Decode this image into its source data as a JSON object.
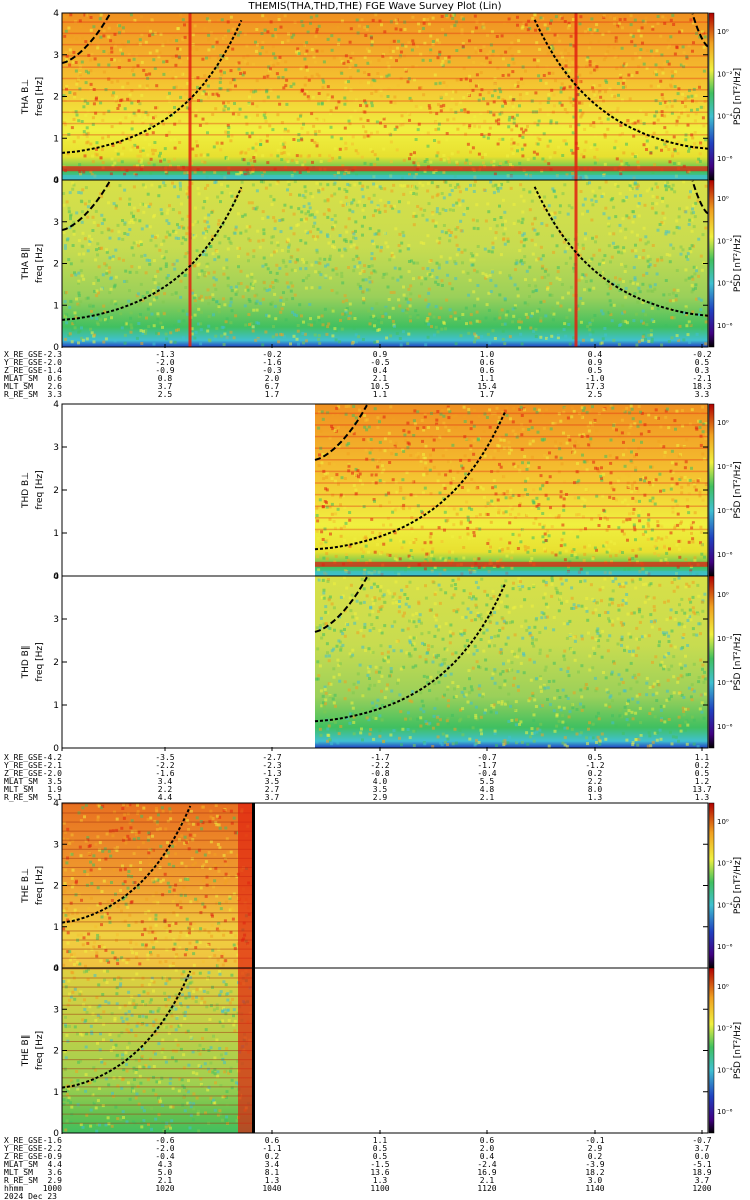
{
  "title": "THEMIS(THA,THD,THE) FGE Wave Survey Plot (Lin)",
  "colors": {
    "red": "#e02010",
    "orange": "#f0a020",
    "yellow": "#f0f040",
    "green": "#40c060",
    "cyan": "#40c0d0",
    "blue": "#2040c0",
    "curve": "#000000"
  },
  "chart_data": [
    {
      "type": "heatmap",
      "probe": "THA",
      "panels": [
        {
          "ylabel": "THA B⊥",
          "ylabel2": "freq [Hz]",
          "ylim": [
            0,
            4
          ],
          "yticks": [
            "0",
            "1",
            "2",
            "3",
            "4"
          ],
          "colorbar_label": "PSD [nT²/Hz]",
          "colorbar_ticks": [
            "10⁰",
            "10⁻²",
            "10⁻⁴",
            "10⁻⁶"
          ]
        },
        {
          "ylabel": "THA B∥",
          "ylabel2": "freq [Hz]",
          "ylim": [
            0,
            4
          ],
          "yticks": [
            "0",
            "1",
            "2",
            "3",
            "4"
          ],
          "colorbar_label": "PSD [nT²/Hz]",
          "colorbar_ticks": [
            "10⁰",
            "10⁻²",
            "10⁻⁴",
            "10⁻⁶"
          ]
        }
      ],
      "ephemeris": [
        {
          "label": "X_RE_GSE",
          "values": [
            "-2.3",
            "-1.3",
            "-0.2",
            "0.9",
            "1.0",
            "0.4",
            "-0.2"
          ]
        },
        {
          "label": "Y_RE_GSE",
          "values": [
            "-2.0",
            "-2.0",
            "-1.6",
            "-0.5",
            "0.6",
            "0.9",
            "0.5"
          ]
        },
        {
          "label": "Z_RE_GSE",
          "values": [
            "-1.4",
            "-0.9",
            "-0.3",
            "0.4",
            "0.6",
            "0.5",
            "0.3"
          ]
        },
        {
          "label": "MLAT_SM",
          "values": [
            "0.6",
            "0.8",
            "2.0",
            "2.1",
            "1.1",
            "-1.0",
            "-2.1"
          ]
        },
        {
          "label": "MLT_SM",
          "values": [
            "2.6",
            "3.7",
            "6.7",
            "10.5",
            "15.4",
            "17.3",
            "18.3"
          ]
        },
        {
          "label": "R_RE_SM",
          "values": [
            "3.3",
            "2.5",
            "1.7",
            "1.1",
            "1.7",
            "2.5",
            "3.3"
          ]
        }
      ]
    },
    {
      "type": "heatmap",
      "probe": "THD",
      "panels": [
        {
          "ylabel": "THD B⊥",
          "ylabel2": "freq [Hz]",
          "ylim": [
            0,
            4
          ],
          "yticks": [
            "0",
            "1",
            "2",
            "3",
            "4"
          ],
          "colorbar_label": "PSD [nT²/Hz]",
          "colorbar_ticks": [
            "10⁰",
            "10⁻²",
            "10⁻⁴",
            "10⁻⁶"
          ]
        },
        {
          "ylabel": "THD B∥",
          "ylabel2": "freq [Hz]",
          "ylim": [
            0,
            4
          ],
          "yticks": [
            "0",
            "1",
            "2",
            "3",
            "4"
          ],
          "colorbar_label": "PSD [nT²/Hz]",
          "colorbar_ticks": [
            "10⁰",
            "10⁻²",
            "10⁻⁴",
            "10⁻⁶"
          ]
        }
      ],
      "ephemeris": [
        {
          "label": "X_RE_GSE",
          "values": [
            "-4.2",
            "-3.5",
            "-2.7",
            "-1.7",
            "-0.7",
            "0.5",
            "1.1"
          ]
        },
        {
          "label": "Y_RE_GSE",
          "values": [
            "-2.1",
            "-2.2",
            "-2.3",
            "-2.2",
            "-1.7",
            "-1.2",
            "0.2"
          ]
        },
        {
          "label": "Z_RE_GSE",
          "values": [
            "-2.0",
            "-1.6",
            "-1.3",
            "-0.8",
            "-0.4",
            "0.2",
            "0.5"
          ]
        },
        {
          "label": "MLAT_SM",
          "values": [
            "3.5",
            "3.4",
            "3.5",
            "4.0",
            "5.5",
            "2.2",
            "1.2"
          ]
        },
        {
          "label": "MLT_SM",
          "values": [
            "1.9",
            "2.2",
            "2.7",
            "3.5",
            "4.8",
            "8.0",
            "13.7"
          ]
        },
        {
          "label": "R_RE_SM",
          "values": [
            "5.1",
            "4.4",
            "3.7",
            "2.9",
            "2.1",
            "1.3",
            "1.3"
          ]
        }
      ]
    },
    {
      "type": "heatmap",
      "probe": "THE",
      "panels": [
        {
          "ylabel": "THE B⊥",
          "ylabel2": "freq [Hz]",
          "ylim": [
            0,
            4
          ],
          "yticks": [
            "0",
            "1",
            "2",
            "3",
            "4"
          ],
          "colorbar_label": "PSD [nT²/Hz]",
          "colorbar_ticks": [
            "10⁰",
            "10⁻²",
            "10⁻⁴",
            "10⁻⁶"
          ]
        },
        {
          "ylabel": "THE B∥",
          "ylabel2": "freq [Hz]",
          "ylim": [
            0,
            4
          ],
          "yticks": [
            "0",
            "1",
            "2",
            "3",
            "4"
          ],
          "colorbar_label": "PSD [nT²/Hz]",
          "colorbar_ticks": [
            "10⁰",
            "10⁻²",
            "10⁻⁴",
            "10⁻⁶"
          ]
        }
      ],
      "ephemeris": [
        {
          "label": "X_RE_GSE",
          "values": [
            "-1.6",
            "-0.6",
            "0.6",
            "1.1",
            "0.6",
            "-0.1",
            "-0.7"
          ]
        },
        {
          "label": "Y_RE_GSE",
          "values": [
            "-2.2",
            "-2.0",
            "-1.1",
            "0.5",
            "2.0",
            "2.9",
            "3.7"
          ]
        },
        {
          "label": "Z_RE_GSE",
          "values": [
            "-0.9",
            "-0.4",
            "0.2",
            "0.5",
            "0.4",
            "0.2",
            "0.0"
          ]
        },
        {
          "label": "MLAT_SM",
          "values": [
            "4.4",
            "4.3",
            "3.4",
            "-1.5",
            "-2.4",
            "-3.9",
            "-5.1"
          ]
        },
        {
          "label": "MLT_SM",
          "values": [
            "3.6",
            "5.0",
            "8.1",
            "13.6",
            "16.9",
            "18.2",
            "18.9"
          ]
        },
        {
          "label": "R_RE_SM",
          "values": [
            "2.9",
            "2.1",
            "1.3",
            "1.3",
            "2.1",
            "3.0",
            "3.7"
          ]
        },
        {
          "label": "hhmm",
          "values": [
            "1000",
            "1020",
            "1040",
            "1100",
            "1120",
            "1140",
            "1200"
          ]
        }
      ],
      "date": "2024 Dec 23"
    }
  ]
}
